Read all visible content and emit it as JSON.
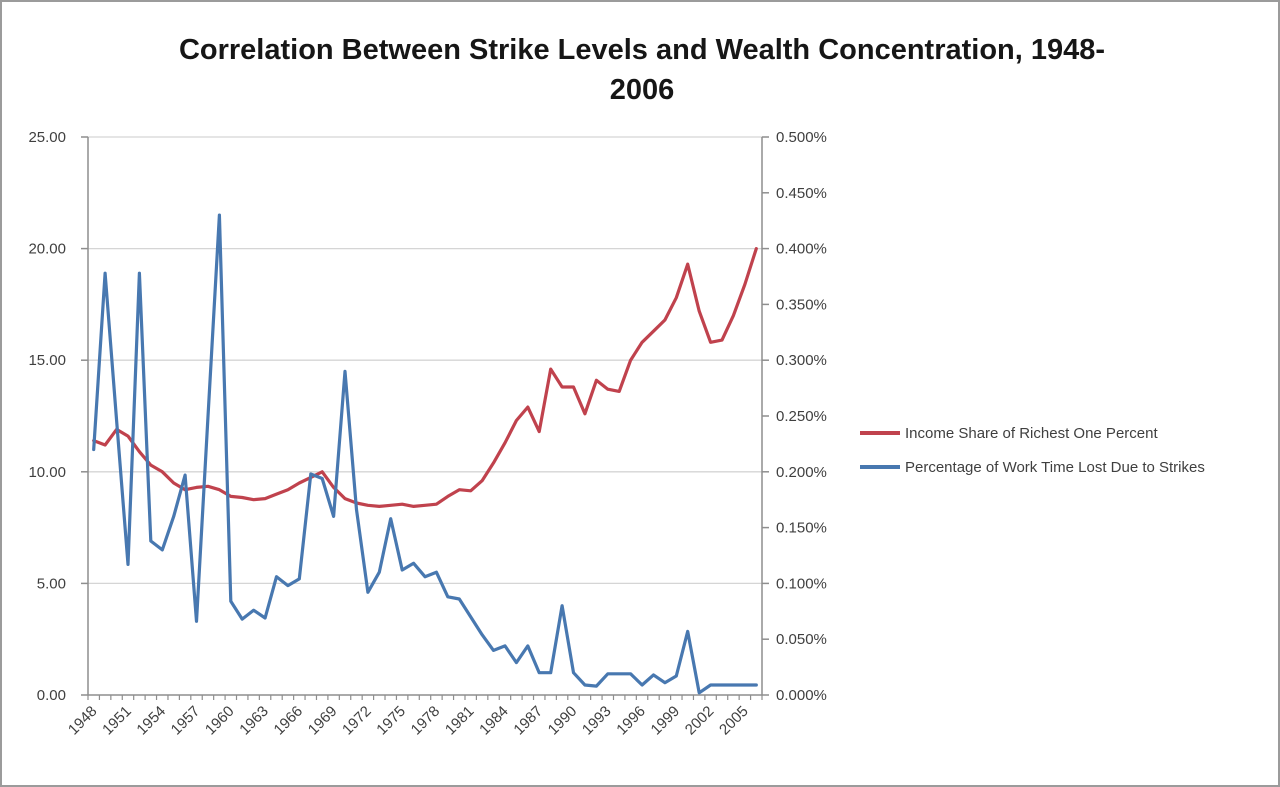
{
  "page": {
    "title_line1": "Correlation Between Strike Levels and Wealth Concentration, 1948-",
    "title_line2": "2006"
  },
  "legend": {
    "position": "right",
    "items": [
      {
        "label": "Income Share of Richest One Percent",
        "color": "#C0424D",
        "marker": "line"
      },
      {
        "label": "Percentage of Work Time Lost Due to Strikes",
        "color": "#4878B0",
        "marker": "line"
      }
    ]
  },
  "colors": {
    "background": "#ffffff",
    "frame_border": "#9b9b9b",
    "gridline": "#d5d5d5",
    "axis_line": "#8e8e8e",
    "axis_text": "#3f3f3f",
    "title_text": "#161616",
    "series_income": "#C0424D",
    "series_strikes": "#4878B0"
  },
  "chart_data": {
    "type": "line",
    "title": "Correlation Between Strike Levels and Wealth Concentration, 1948-2006",
    "grid": "horizontal",
    "legend_position": "right",
    "x": [
      1948,
      1949,
      1950,
      1951,
      1952,
      1953,
      1954,
      1955,
      1956,
      1957,
      1958,
      1959,
      1960,
      1961,
      1962,
      1963,
      1964,
      1965,
      1966,
      1967,
      1968,
      1969,
      1970,
      1971,
      1972,
      1973,
      1974,
      1975,
      1976,
      1977,
      1978,
      1979,
      1980,
      1981,
      1982,
      1983,
      1984,
      1985,
      1986,
      1987,
      1988,
      1989,
      1990,
      1991,
      1992,
      1993,
      1994,
      1995,
      1996,
      1997,
      1998,
      1999,
      2000,
      2001,
      2002,
      2003,
      2004,
      2005,
      2006
    ],
    "x_axis": {
      "tick_interval": 3,
      "tick_labels": [
        "1948",
        "1951",
        "1954",
        "1957",
        "1960",
        "1963",
        "1966",
        "1969",
        "1972",
        "1975",
        "1978",
        "1981",
        "1984",
        "1987",
        "1990",
        "1993",
        "1996",
        "1999",
        "2002",
        "2005"
      ],
      "label_rotation_deg": -45
    },
    "left_axis": {
      "series": "Income Share of Richest One Percent",
      "range": [
        0,
        25
      ],
      "tick_labels": [
        "0.00",
        "5.00",
        "10.00",
        "15.00",
        "20.00",
        "25.00"
      ]
    },
    "right_axis": {
      "series": "Percentage of Work Time Lost Due to Strikes",
      "range_percent": [
        0,
        0.5
      ],
      "tick_labels": [
        "0.000%",
        "0.050%",
        "0.100%",
        "0.150%",
        "0.200%",
        "0.250%",
        "0.300%",
        "0.350%",
        "0.400%",
        "0.450%",
        "0.500%"
      ]
    },
    "series": [
      {
        "name": "Income Share of Richest One Percent",
        "axis": "left",
        "color": "#C0424D",
        "values": [
          11.4,
          11.2,
          11.9,
          11.6,
          10.9,
          10.3,
          10.0,
          9.5,
          9.2,
          9.3,
          9.35,
          9.2,
          8.9,
          8.85,
          8.75,
          8.8,
          9.0,
          9.2,
          9.5,
          9.75,
          10.0,
          9.3,
          8.8,
          8.6,
          8.5,
          8.45,
          8.5,
          8.55,
          8.45,
          8.5,
          8.55,
          8.9,
          9.2,
          9.15,
          9.6,
          10.4,
          11.3,
          12.3,
          12.9,
          11.8,
          14.6,
          13.8,
          13.8,
          12.6,
          14.1,
          13.7,
          13.6,
          15.0,
          15.8,
          16.3,
          16.8,
          17.8,
          19.3,
          17.2,
          15.8,
          15.9,
          17.0,
          18.4,
          20.0
        ]
      },
      {
        "name": "Percentage of Work Time Lost Due to Strikes",
        "axis": "right",
        "color": "#4878B0",
        "values_percent": [
          0.22,
          0.378,
          0.246,
          0.117,
          0.378,
          0.138,
          0.13,
          0.16,
          0.197,
          0.066,
          0.248,
          0.43,
          0.084,
          0.068,
          0.076,
          0.069,
          0.106,
          0.098,
          0.104,
          0.198,
          0.194,
          0.16,
          0.29,
          0.166,
          0.092,
          0.11,
          0.158,
          0.112,
          0.118,
          0.106,
          0.11,
          0.088,
          0.086,
          0.07,
          0.054,
          0.04,
          0.044,
          0.029,
          0.044,
          0.02,
          0.02,
          0.08,
          0.02,
          0.009,
          0.008,
          0.019,
          0.019,
          0.019,
          0.009,
          0.018,
          0.011,
          0.017,
          0.057,
          0.002,
          0.009,
          0.009,
          0.009,
          0.009,
          0.009
        ]
      }
    ]
  }
}
